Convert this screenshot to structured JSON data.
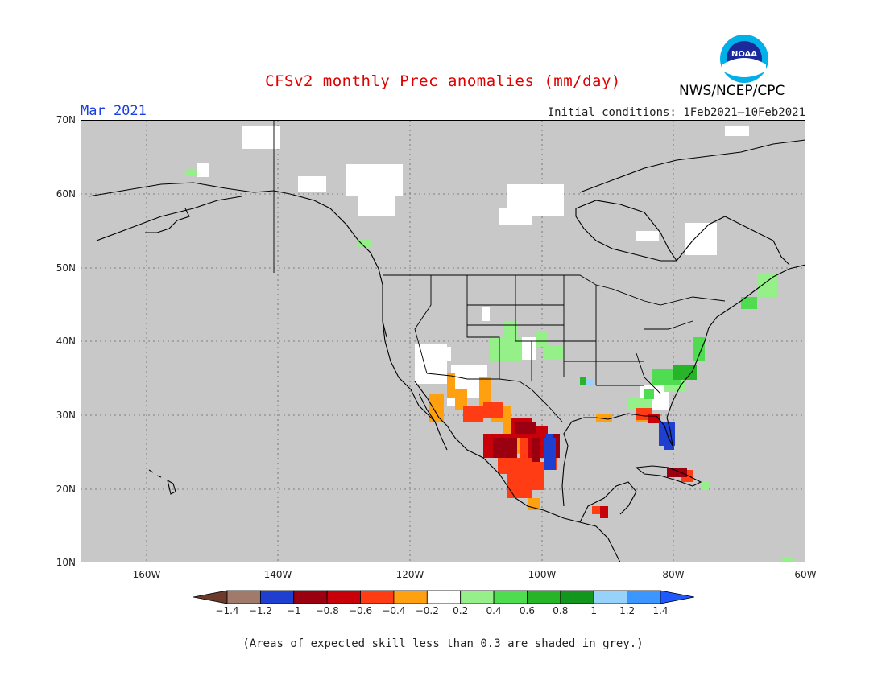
{
  "title": "CFSv2 monthly Prec anomalies (mm/day)",
  "month": "Mar 2021",
  "initial_conditions": "Initial conditions: 1Feb2021–10Feb2021",
  "agency": "NWS/NCEP/CPC",
  "logo_text": "NOAA",
  "footnote": "(Areas of expected skill less than 0.3 are shaded in grey.)",
  "lat_labels": [
    "70N",
    "60N",
    "50N",
    "40N",
    "30N",
    "20N",
    "10N"
  ],
  "lon_labels": [
    "160W",
    "140W",
    "120W",
    "100W",
    "80W",
    "60W"
  ],
  "colorbar": {
    "labels": [
      "−1.4",
      "−1.2",
      "−1",
      "−0.8",
      "−0.6",
      "−0.4",
      "−0.2",
      "0.2",
      "0.4",
      "0.6",
      "0.8",
      "1",
      "1.2",
      "1.4"
    ],
    "colors": [
      "#6b3a2a",
      "#a07a6a",
      "#1f3fd0",
      "#9a0010",
      "#c8000a",
      "#ff3c14",
      "#ffa010",
      "#ffffff",
      "#96f08a",
      "#50dc50",
      "#28b428",
      "#13961e",
      "#96d2fa",
      "#3c96ff",
      "#1e5aff"
    ]
  },
  "colors": {
    "grey_mask": "#c8c8c8",
    "title_red": "#e00000",
    "month_blue": "#1a3fe0"
  }
}
